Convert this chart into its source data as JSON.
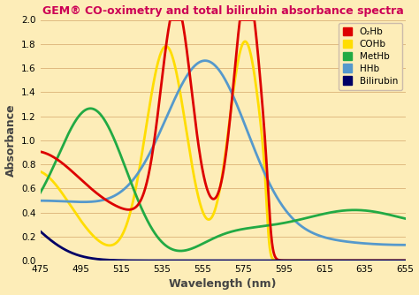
{
  "title": "GEM® CO-oximetry and total bilirubin absorbance spectra",
  "xlabel": "Wavelength (nm)",
  "ylabel": "Absorbance",
  "xlim": [
    475,
    655
  ],
  "ylim": [
    0,
    2.0
  ],
  "xticks": [
    475,
    495,
    515,
    535,
    555,
    575,
    595,
    615,
    635,
    655
  ],
  "yticks": [
    0,
    0.2,
    0.4,
    0.6,
    0.8,
    1.0,
    1.2,
    1.4,
    1.6,
    1.8,
    2.0
  ],
  "background_color": "#FDEDB8",
  "title_color": "#CC0055",
  "line_colors": {
    "O2Hb": "#DD0000",
    "COHb": "#FFDD00",
    "MetHb": "#22AA44",
    "HHb": "#5599CC",
    "Bilirubin": "#000066"
  },
  "legend_labels": [
    "O₂Hb",
    "COHb",
    "MetHb",
    "HHb",
    "Bilirubin"
  ],
  "legend_colors": [
    "#DD0000",
    "#FFDD00",
    "#22AA44",
    "#5599CC",
    "#000066"
  ]
}
